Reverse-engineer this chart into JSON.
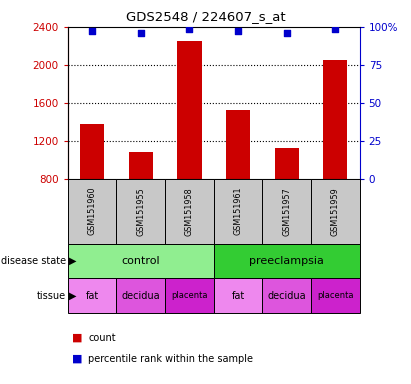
{
  "title": "GDS2548 / 224607_s_at",
  "samples": [
    "GSM151960",
    "GSM151955",
    "GSM151958",
    "GSM151961",
    "GSM151957",
    "GSM151959"
  ],
  "bar_values": [
    1380,
    1080,
    2250,
    1520,
    1120,
    2050
  ],
  "percentile_values": [
    97,
    96,
    98.5,
    97,
    96,
    98.5
  ],
  "ylim_left": [
    800,
    2400
  ],
  "ylim_right": [
    0,
    100
  ],
  "yticks_left": [
    800,
    1200,
    1600,
    2000,
    2400
  ],
  "yticks_right": [
    0,
    25,
    50,
    75,
    100
  ],
  "bar_color": "#cc0000",
  "percentile_color": "#0000cc",
  "n_samples": 6,
  "bar_width": 0.5,
  "tissue_labels": [
    "fat",
    "decidua",
    "placenta",
    "fat",
    "decidua",
    "placenta"
  ],
  "tissue_colors": [
    "#ee88ee",
    "#dd55dd",
    "#cc22cc",
    "#ee88ee",
    "#dd55dd",
    "#cc22cc"
  ],
  "control_color": "#90ee90",
  "preeclampsia_color": "#33cc33",
  "sample_box_color": "#c8c8c8"
}
